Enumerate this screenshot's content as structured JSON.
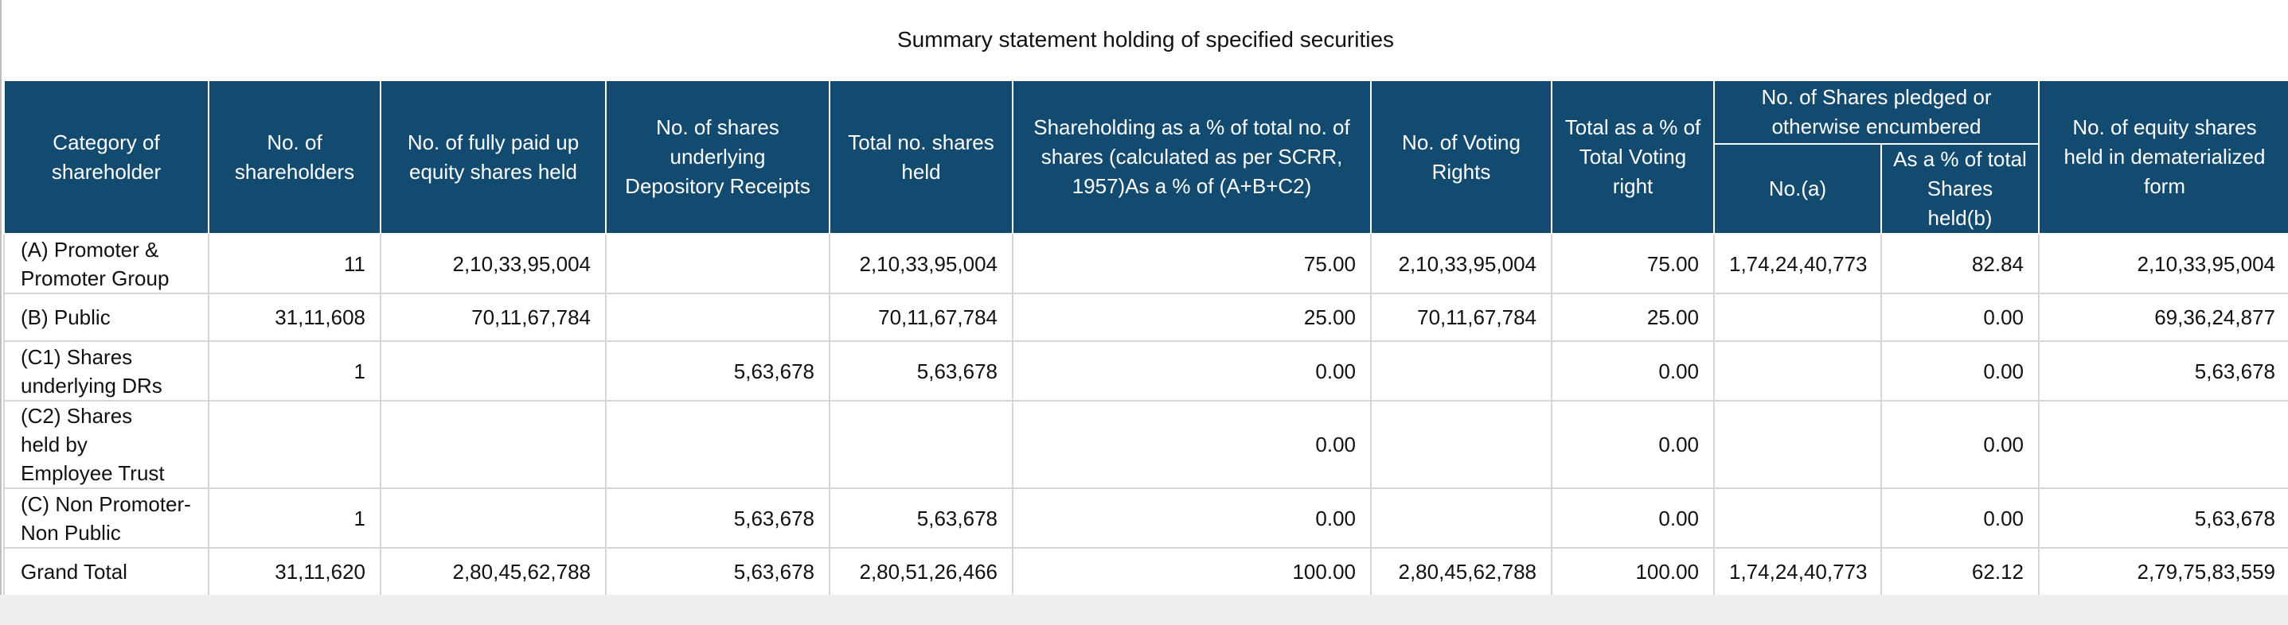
{
  "title": "Summary statement holding of specified securities",
  "headers": {
    "category": "Category of shareholder",
    "no_shareholders": "No. of shareholders",
    "fully_paid": "No. of fully paid up equity shares held",
    "depository": "No. of shares underlying Depository Receipts",
    "total_shares": "Total no. shares held",
    "shareholding_pct": "Shareholding as a % of total no. of shares (calculated as per SCRR, 1957)As a % of (A+B+C2)",
    "voting_rights": "No. of Voting Rights",
    "total_voting_pct": "Total as a % of Total Voting right",
    "pledged_group": "No. of Shares pledged or otherwise encumbered",
    "pledged_no": "No.(a)",
    "pledged_pct": "As a % of total Shares held(b)",
    "demat": "No. of equity shares held in dematerialized form"
  },
  "rows": [
    {
      "category": "(A) Promoter & Promoter Group",
      "no_shareholders": "11",
      "fully_paid": "2,10,33,95,004",
      "depository": "",
      "total_shares": "2,10,33,95,004",
      "shareholding_pct": "75.00",
      "voting_rights": "2,10,33,95,004",
      "total_voting_pct": "75.00",
      "pledged_no": "1,74,24,40,773",
      "pledged_pct": "82.84",
      "demat": "2,10,33,95,004"
    },
    {
      "category": "(B) Public",
      "no_shareholders": "31,11,608",
      "fully_paid": "70,11,67,784",
      "depository": "",
      "total_shares": "70,11,67,784",
      "shareholding_pct": "25.00",
      "voting_rights": "70,11,67,784",
      "total_voting_pct": "25.00",
      "pledged_no": "",
      "pledged_pct": "0.00",
      "demat": "69,36,24,877"
    },
    {
      "category": "(C1) Shares underlying DRs",
      "no_shareholders": "1",
      "fully_paid": "",
      "depository": "5,63,678",
      "total_shares": "5,63,678",
      "shareholding_pct": "0.00",
      "voting_rights": "",
      "total_voting_pct": "0.00",
      "pledged_no": "",
      "pledged_pct": "0.00",
      "demat": "5,63,678"
    },
    {
      "category": "(C2) Shares held by Employee Trust",
      "no_shareholders": "",
      "fully_paid": "",
      "depository": "",
      "total_shares": "",
      "shareholding_pct": "0.00",
      "voting_rights": "",
      "total_voting_pct": "0.00",
      "pledged_no": "",
      "pledged_pct": "0.00",
      "demat": ""
    },
    {
      "category": "(C) Non Promoter-Non Public",
      "no_shareholders": "1",
      "fully_paid": "",
      "depository": "5,63,678",
      "total_shares": "5,63,678",
      "shareholding_pct": "0.00",
      "voting_rights": "",
      "total_voting_pct": "0.00",
      "pledged_no": "",
      "pledged_pct": "0.00",
      "demat": "5,63,678"
    },
    {
      "category": "Grand Total",
      "no_shareholders": "31,11,620",
      "fully_paid": "2,80,45,62,788",
      "depository": "5,63,678",
      "total_shares": "2,80,51,26,466",
      "shareholding_pct": "100.00",
      "voting_rights": "2,80,45,62,788",
      "total_voting_pct": "100.00",
      "pledged_no": "1,74,24,40,773",
      "pledged_pct": "62.12",
      "demat": "2,79,75,83,559"
    }
  ]
}
